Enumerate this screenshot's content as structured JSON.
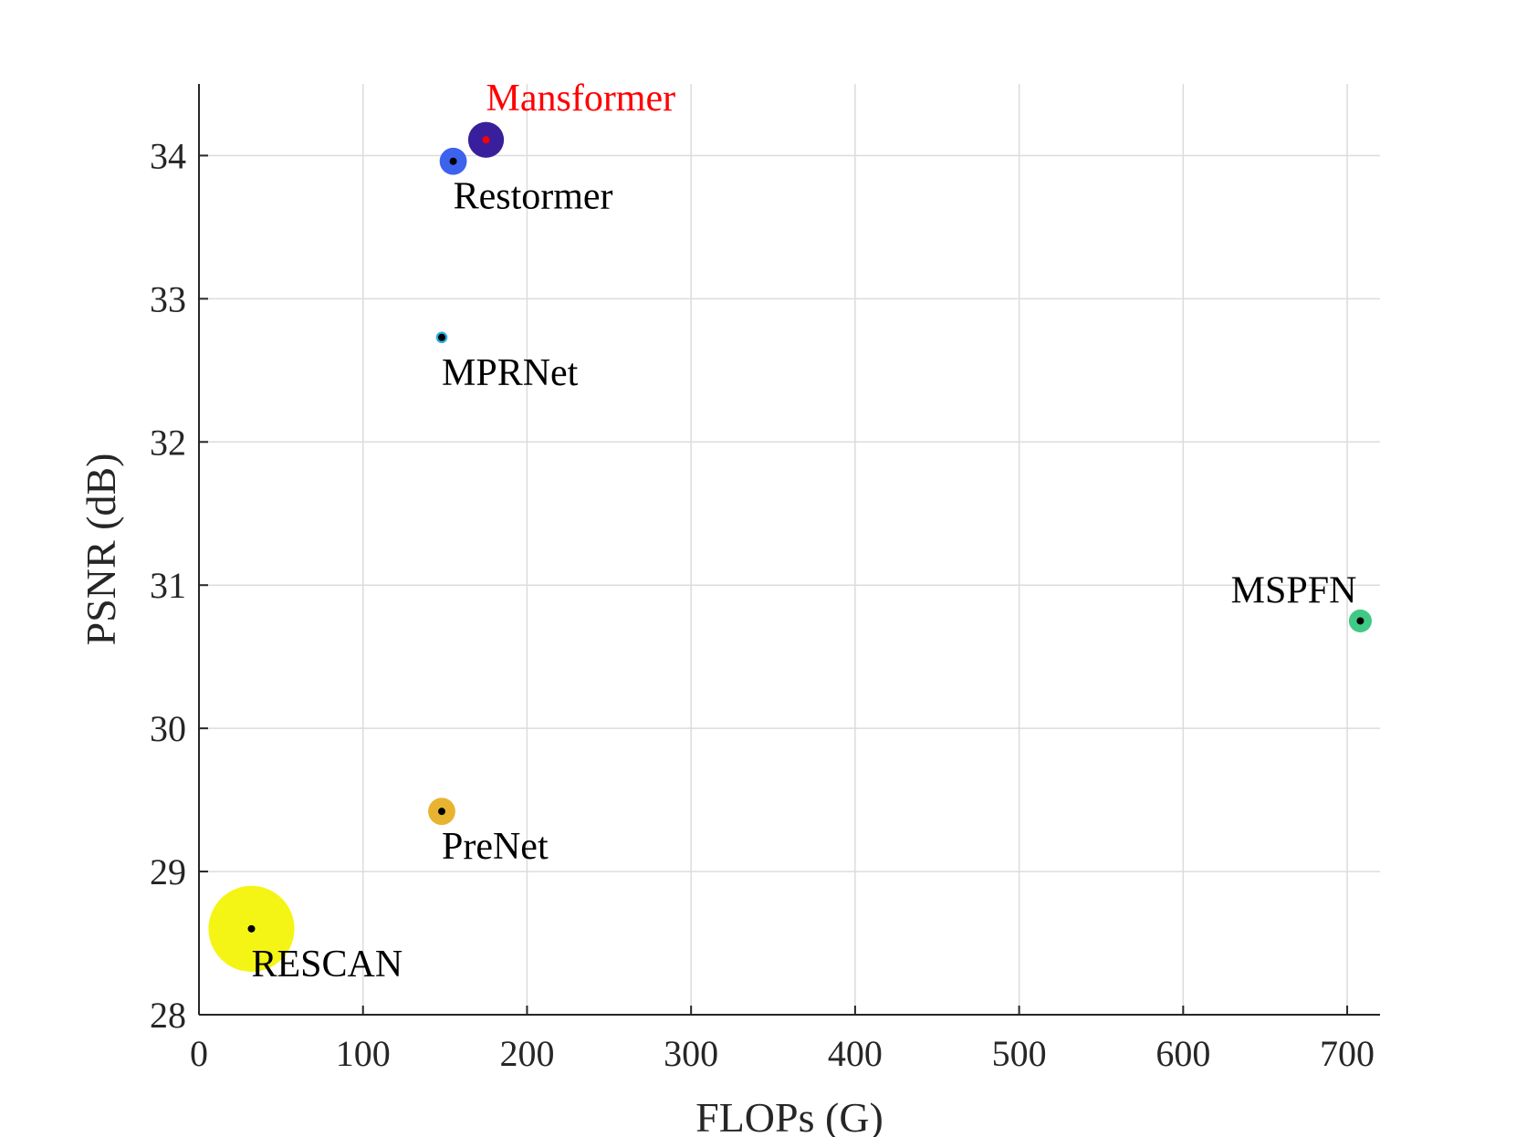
{
  "chart_data": {
    "type": "scatter",
    "xlabel": "FLOPs (G)",
    "ylabel": "PSNR (dB)",
    "xlim": [
      0,
      720
    ],
    "ylim": [
      28,
      34.5
    ],
    "xticks": [
      "0",
      "100",
      "200",
      "300",
      "400",
      "500",
      "600",
      "700"
    ],
    "yticks": [
      "28",
      "29",
      "30",
      "31",
      "32",
      "33",
      "34"
    ],
    "grid": true,
    "points": [
      {
        "name": "Mansformer",
        "flops": 175,
        "psnr": 34.11,
        "bubble": 0.25,
        "color": "#3a1f9c",
        "dot_color": "#ff0000",
        "label_color": "#ff0000",
        "label_pos": "above-right"
      },
      {
        "name": "Restormer",
        "flops": 155,
        "psnr": 33.96,
        "bubble": 0.19,
        "color": "#3d62ee",
        "dot_color": "#000000",
        "label_color": "#000000",
        "label_pos": "below-right"
      },
      {
        "name": "MPRNet",
        "flops": 148,
        "psnr": 32.73,
        "bubble": 0.08,
        "color": "#26b0e8",
        "dot_color": "#000000",
        "label_color": "#000000",
        "label_pos": "below-right"
      },
      {
        "name": "MSPFN",
        "flops": 708,
        "psnr": 30.75,
        "bubble": 0.16,
        "color": "#40c985",
        "dot_color": "#000000",
        "label_color": "#000000",
        "label_pos": "above-left"
      },
      {
        "name": "PreNet",
        "flops": 148,
        "psnr": 29.42,
        "bubble": 0.19,
        "color": "#e8b430",
        "dot_color": "#000000",
        "label_color": "#000000",
        "label_pos": "below-right"
      },
      {
        "name": "RESCAN",
        "flops": 32,
        "psnr": 28.6,
        "bubble": 0.6,
        "color": "#f5f515",
        "dot_color": "#000000",
        "label_color": "#000000",
        "label_pos": "below-right"
      }
    ]
  }
}
